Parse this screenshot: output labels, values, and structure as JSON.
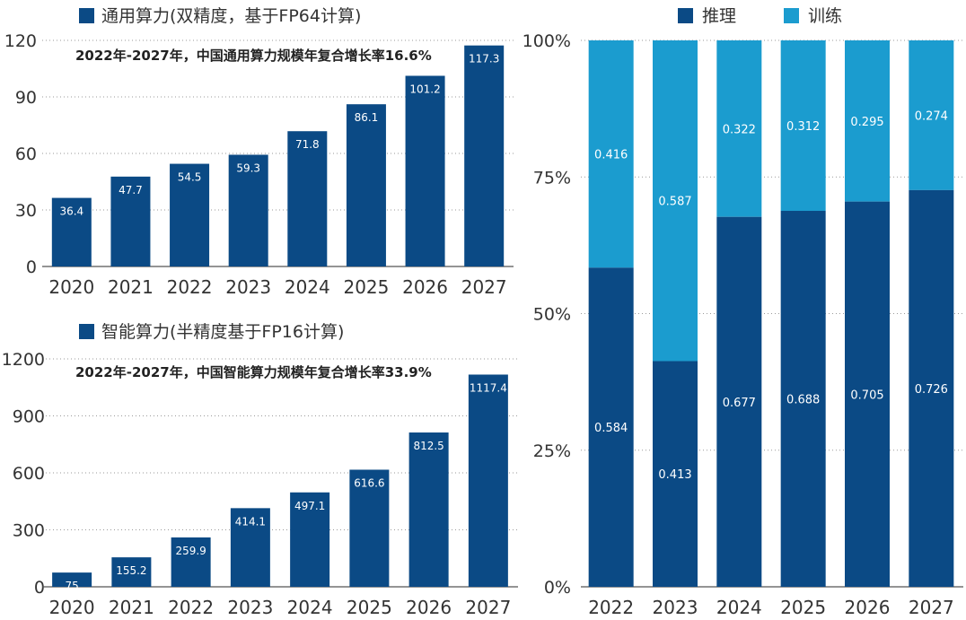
{
  "chart_data": [
    {
      "type": "bar",
      "legend": "通用算力(双精度，基于FP64计算)",
      "annotation": "2022年-2027年，中国通用算力规模年复合增长率16.6%",
      "categories": [
        "2020",
        "2021",
        "2022",
        "2023",
        "2024",
        "2025",
        "2026",
        "2027"
      ],
      "values": [
        36.4,
        47.7,
        54.5,
        59.3,
        71.8,
        86.1,
        101.2,
        117.3
      ],
      "value_labels": [
        "36.4",
        "47.7",
        "54.5",
        "59.3",
        "71.8",
        "86.1",
        "101.2",
        "117.3"
      ],
      "ylim": [
        0,
        120
      ],
      "yticks": [
        "0",
        "30",
        "60",
        "90",
        "120"
      ],
      "grid": "dotted-horizontal",
      "legend_position": "top-left"
    },
    {
      "type": "bar",
      "legend": "智能算力(半精度基于FP16计算)",
      "annotation": "2022年-2027年，中国智能算力规模年复合增长率33.9%",
      "categories": [
        "2020",
        "2021",
        "2022",
        "2023",
        "2024",
        "2025",
        "2026",
        "2027"
      ],
      "values": [
        75,
        155.2,
        259.9,
        414.1,
        497.1,
        616.6,
        812.5,
        1117.4
      ],
      "value_labels": [
        "75",
        "155.2",
        "259.9",
        "414.1",
        "497.1",
        "616.6",
        "812.5",
        "1117.4"
      ],
      "ylim": [
        0,
        1200
      ],
      "yticks": [
        "0",
        "300",
        "600",
        "900",
        "1200"
      ],
      "grid": "dotted-horizontal",
      "legend_position": "top-left"
    },
    {
      "type": "bar",
      "stacked": true,
      "categories": [
        "2022",
        "2023",
        "2024",
        "2025",
        "2026",
        "2027"
      ],
      "series": [
        {
          "name": "推理",
          "values": [
            0.584,
            0.413,
            0.677,
            0.688,
            0.705,
            0.726
          ],
          "labels": [
            "0.584",
            "0.413",
            "0.677",
            "0.688",
            "0.705",
            "0.726"
          ]
        },
        {
          "name": "训练",
          "values": [
            0.416,
            0.587,
            0.322,
            0.312,
            0.295,
            0.274
          ],
          "labels": [
            "0.416",
            "0.587",
            "0.322",
            "0.312",
            "0.295",
            "0.274"
          ]
        }
      ],
      "ylim": [
        0,
        1
      ],
      "yticks": [
        "0%",
        "25%",
        "50%",
        "75%",
        "100%"
      ],
      "grid": "dotted-horizontal",
      "legend_position": "top-center"
    }
  ],
  "colors": {
    "bar_dark": "#0b4a85",
    "bar_light": "#1b9ccf",
    "axis_text": "#333333",
    "grid": "#9a9a9a",
    "label_text": "#ffffff"
  }
}
